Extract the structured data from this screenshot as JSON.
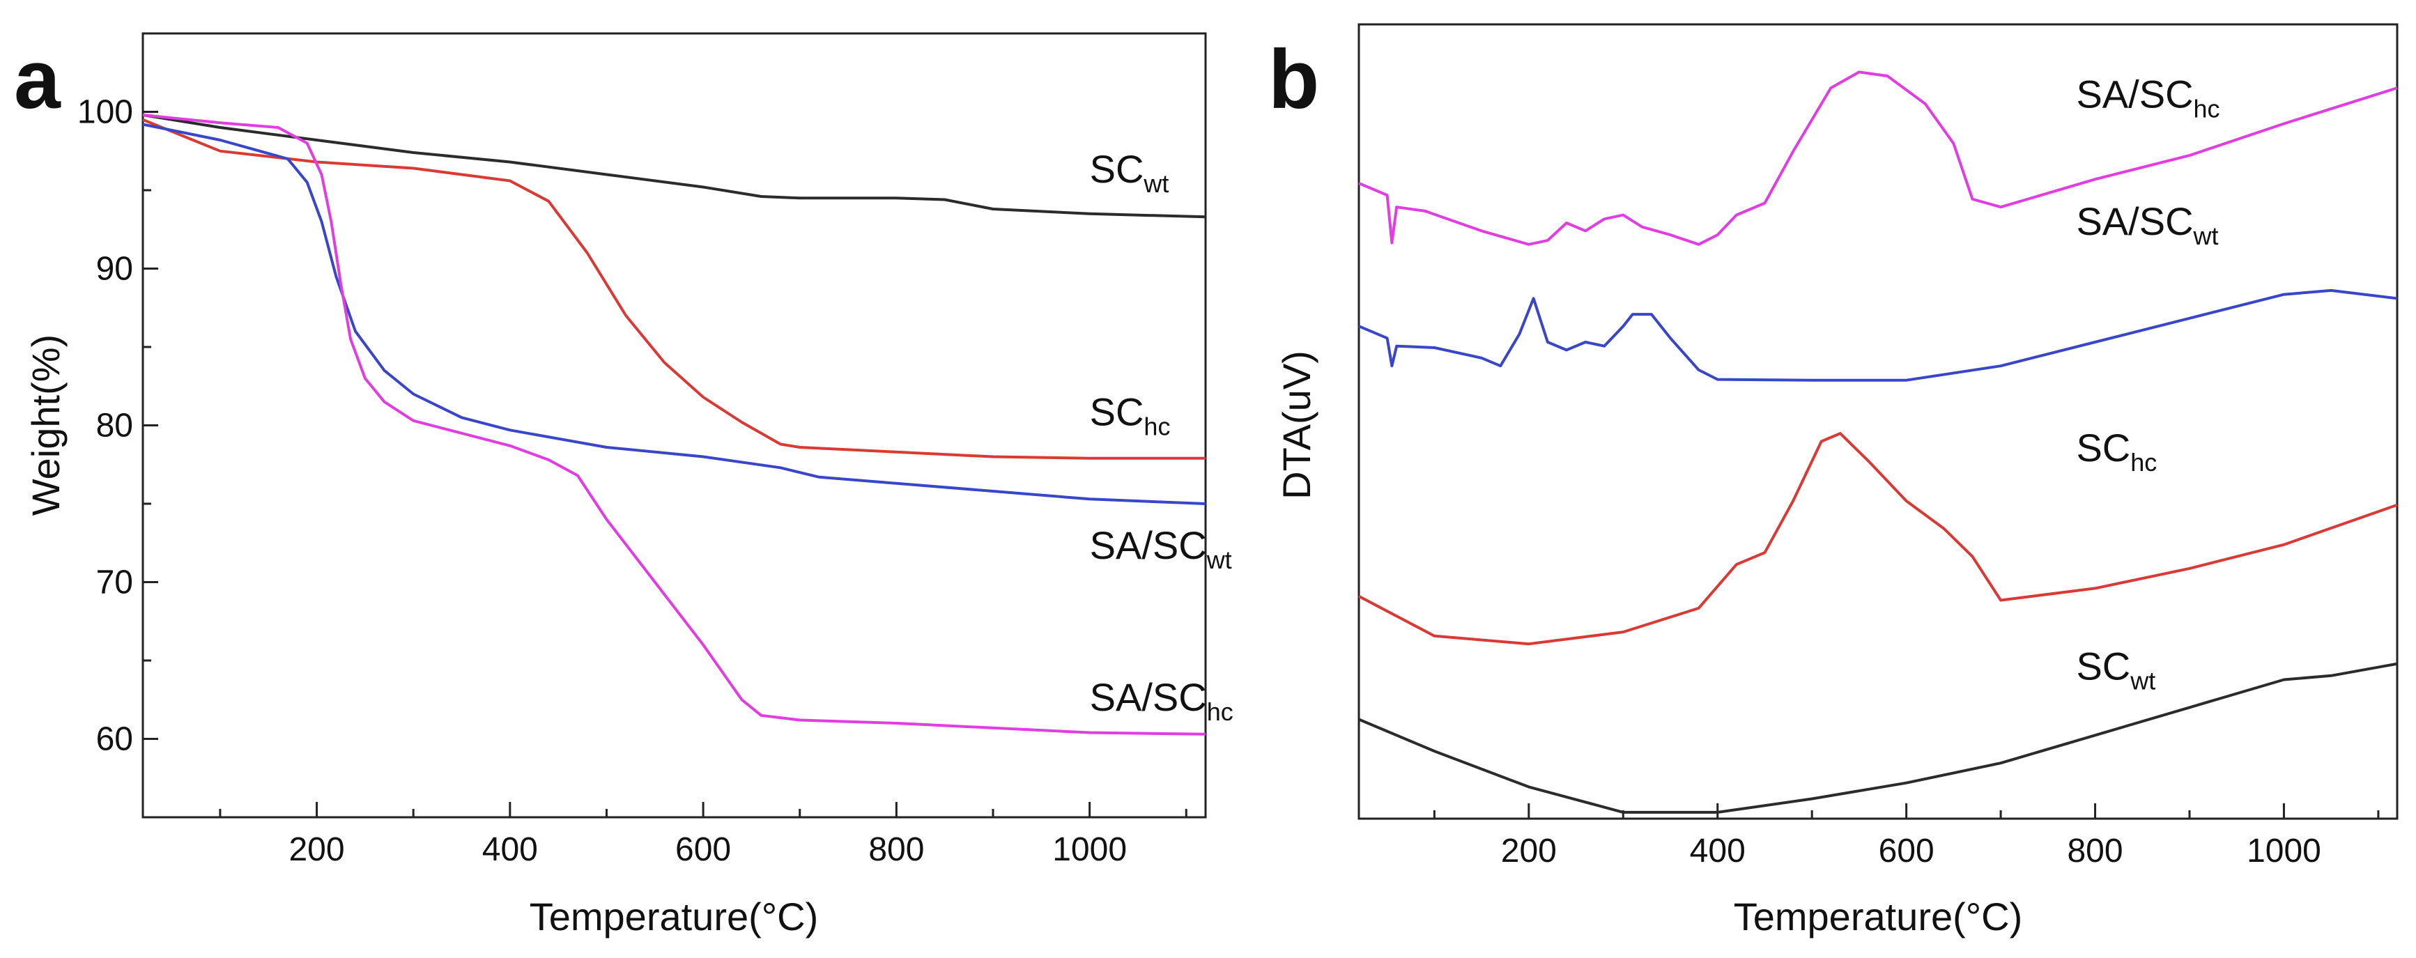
{
  "chart_data": [
    {
      "panel_letter": "a",
      "type": "line",
      "xlabel": "Temperature(°C)",
      "ylabel": "Weight(%)",
      "xlim": [
        20,
        1120
      ],
      "ylim": [
        55,
        105
      ],
      "xticks": [
        200,
        400,
        600,
        800,
        1000
      ],
      "yticks": [
        60,
        70,
        80,
        90,
        100
      ],
      "series": [
        {
          "name": "SCwt",
          "label_main": "SC",
          "label_sub": "wt",
          "color": "#2b2b2b",
          "label_at": [
            1000,
            95.5
          ],
          "points": [
            [
              20,
              99.8
            ],
            [
              100,
              99.0
            ],
            [
              200,
              98.2
            ],
            [
              300,
              97.4
            ],
            [
              400,
              96.8
            ],
            [
              500,
              96.0
            ],
            [
              600,
              95.2
            ],
            [
              660,
              94.6
            ],
            [
              700,
              94.5
            ],
            [
              800,
              94.5
            ],
            [
              850,
              94.4
            ],
            [
              900,
              93.8
            ],
            [
              1000,
              93.5
            ],
            [
              1120,
              93.3
            ]
          ]
        },
        {
          "name": "SChc",
          "label_main": "SC",
          "label_sub": "hc",
          "color": "#d93a35",
          "label_at": [
            1000,
            80.0
          ],
          "points": [
            [
              20,
              99.5
            ],
            [
              100,
              97.5
            ],
            [
              200,
              96.8
            ],
            [
              300,
              96.4
            ],
            [
              400,
              95.6
            ],
            [
              440,
              94.3
            ],
            [
              480,
              91.0
            ],
            [
              520,
              87.0
            ],
            [
              560,
              84.0
            ],
            [
              600,
              81.8
            ],
            [
              640,
              80.2
            ],
            [
              680,
              78.8
            ],
            [
              700,
              78.6
            ],
            [
              800,
              78.3
            ],
            [
              900,
              78.0
            ],
            [
              1000,
              77.9
            ],
            [
              1120,
              77.9
            ]
          ]
        },
        {
          "name": "SA/SCwt",
          "label_main": "SA/SC",
          "label_sub": "wt",
          "color": "#3a46c8",
          "label_at": [
            1000,
            71.5
          ],
          "points": [
            [
              20,
              99.2
            ],
            [
              100,
              98.2
            ],
            [
              170,
              97.0
            ],
            [
              190,
              95.5
            ],
            [
              205,
              93.0
            ],
            [
              220,
              89.5
            ],
            [
              240,
              86.0
            ],
            [
              270,
              83.5
            ],
            [
              300,
              82.0
            ],
            [
              350,
              80.5
            ],
            [
              400,
              79.7
            ],
            [
              500,
              78.6
            ],
            [
              600,
              78.0
            ],
            [
              680,
              77.3
            ],
            [
              720,
              76.7
            ],
            [
              800,
              76.3
            ],
            [
              900,
              75.8
            ],
            [
              1000,
              75.3
            ],
            [
              1120,
              75.0
            ]
          ]
        },
        {
          "name": "SA/SChc",
          "label_main": "SA/SC",
          "label_sub": "hc",
          "color": "#e03ee0",
          "label_at": [
            1000,
            61.8
          ],
          "points": [
            [
              20,
              99.8
            ],
            [
              100,
              99.3
            ],
            [
              160,
              99.0
            ],
            [
              190,
              98.0
            ],
            [
              205,
              96.0
            ],
            [
              215,
              93.0
            ],
            [
              225,
              89.0
            ],
            [
              235,
              85.5
            ],
            [
              250,
              83.0
            ],
            [
              270,
              81.5
            ],
            [
              300,
              80.3
            ],
            [
              400,
              78.7
            ],
            [
              440,
              77.8
            ],
            [
              470,
              76.8
            ],
            [
              500,
              74.0
            ],
            [
              550,
              70.0
            ],
            [
              600,
              66.0
            ],
            [
              640,
              62.5
            ],
            [
              660,
              61.5
            ],
            [
              700,
              61.2
            ],
            [
              800,
              61.0
            ],
            [
              900,
              60.7
            ],
            [
              1000,
              60.4
            ],
            [
              1120,
              60.3
            ]
          ]
        }
      ]
    },
    {
      "panel_letter": "b",
      "type": "line",
      "xlabel": "Temperature(°C)",
      "ylabel": "DTA(uV)",
      "xlim": [
        20,
        1120
      ],
      "ylim": [
        0,
        100
      ],
      "xticks": [
        200,
        400,
        600,
        800,
        1000
      ],
      "yticks": [],
      "series": [
        {
          "name": "SA/SChc",
          "label_main": "SA/SC",
          "label_sub": "hc",
          "color": "#e03ee0",
          "label_at": [
            780,
            89.5
          ],
          "points": [
            [
              20,
              80.0
            ],
            [
              50,
              78.5
            ],
            [
              55,
              72.5
            ],
            [
              60,
              77.0
            ],
            [
              90,
              76.5
            ],
            [
              150,
              74.0
            ],
            [
              200,
              72.3
            ],
            [
              220,
              72.8
            ],
            [
              240,
              75.0
            ],
            [
              260,
              74.0
            ],
            [
              280,
              75.5
            ],
            [
              300,
              76.0
            ],
            [
              320,
              74.5
            ],
            [
              350,
              73.5
            ],
            [
              380,
              72.3
            ],
            [
              400,
              73.5
            ],
            [
              420,
              76.0
            ],
            [
              450,
              77.5
            ],
            [
              480,
              84.0
            ],
            [
              520,
              92.0
            ],
            [
              550,
              94.0
            ],
            [
              580,
              93.5
            ],
            [
              620,
              90.0
            ],
            [
              650,
              85.0
            ],
            [
              670,
              78.0
            ],
            [
              700,
              77.0
            ],
            [
              800,
              80.5
            ],
            [
              900,
              83.5
            ],
            [
              1000,
              87.5
            ],
            [
              1120,
              92.0
            ]
          ]
        },
        {
          "name": "SA/SCwt",
          "label_main": "SA/SC",
          "label_sub": "wt",
          "color": "#3a46c8",
          "label_at": [
            780,
            73.5
          ],
          "points": [
            [
              20,
              62.0
            ],
            [
              50,
              60.5
            ],
            [
              55,
              57.0
            ],
            [
              60,
              59.5
            ],
            [
              100,
              59.3
            ],
            [
              150,
              58.0
            ],
            [
              170,
              57.0
            ],
            [
              190,
              61.0
            ],
            [
              205,
              65.5
            ],
            [
              220,
              60.0
            ],
            [
              240,
              59.0
            ],
            [
              260,
              60.0
            ],
            [
              280,
              59.5
            ],
            [
              300,
              62.0
            ],
            [
              310,
              63.5
            ],
            [
              330,
              63.5
            ],
            [
              350,
              60.5
            ],
            [
              380,
              56.5
            ],
            [
              400,
              55.3
            ],
            [
              500,
              55.2
            ],
            [
              600,
              55.2
            ],
            [
              700,
              57.0
            ],
            [
              800,
              60.0
            ],
            [
              900,
              63.0
            ],
            [
              1000,
              66.0
            ],
            [
              1050,
              66.5
            ],
            [
              1120,
              65.5
            ]
          ]
        },
        {
          "name": "SChc",
          "label_main": "SC",
          "label_sub": "hc",
          "color": "#d93a35",
          "label_at": [
            780,
            45.0
          ],
          "points": [
            [
              20,
              28.0
            ],
            [
              100,
              23.0
            ],
            [
              200,
              22.0
            ],
            [
              300,
              23.5
            ],
            [
              380,
              26.5
            ],
            [
              420,
              32.0
            ],
            [
              450,
              33.5
            ],
            [
              480,
              40.0
            ],
            [
              510,
              47.5
            ],
            [
              530,
              48.5
            ],
            [
              560,
              45.0
            ],
            [
              600,
              40.0
            ],
            [
              640,
              36.5
            ],
            [
              670,
              33.0
            ],
            [
              700,
              27.5
            ],
            [
              800,
              29.0
            ],
            [
              900,
              31.5
            ],
            [
              1000,
              34.5
            ],
            [
              1120,
              39.5
            ]
          ]
        },
        {
          "name": "SCwt",
          "label_main": "SC",
          "label_sub": "wt",
          "color": "#2b2b2b",
          "label_at": [
            780,
            17.5
          ],
          "points": [
            [
              20,
              12.5
            ],
            [
              100,
              8.5
            ],
            [
              200,
              4.0
            ],
            [
              300,
              0.8
            ],
            [
              400,
              0.8
            ],
            [
              500,
              2.5
            ],
            [
              600,
              4.5
            ],
            [
              700,
              7.0
            ],
            [
              800,
              10.5
            ],
            [
              900,
              14.0
            ],
            [
              1000,
              17.5
            ],
            [
              1050,
              18.0
            ],
            [
              1120,
              19.5
            ]
          ]
        }
      ]
    }
  ]
}
